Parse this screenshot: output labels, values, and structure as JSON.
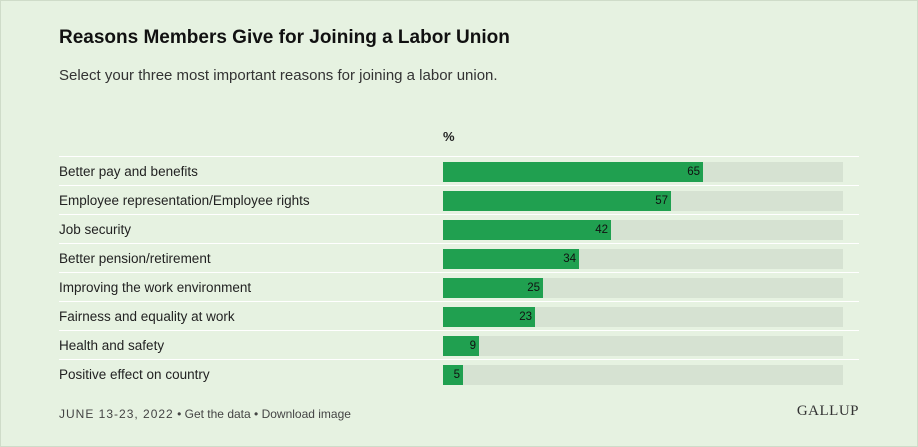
{
  "header": {
    "title": "Reasons Members Give for Joining a Labor Union",
    "subtitle": "Select your three most important reasons for joining a labor union."
  },
  "chart_data": {
    "type": "bar",
    "orientation": "horizontal",
    "unit_label": "%",
    "categories": [
      "Better pay and benefits",
      "Employee representation/Employee rights",
      "Job security",
      "Better pension/retirement",
      "Improving the work environment",
      "Fairness and equality at work",
      "Health and safety",
      "Positive effect on country"
    ],
    "values": [
      65,
      57,
      42,
      34,
      25,
      23,
      9,
      5
    ],
    "xlim": [
      0,
      100
    ],
    "bar_color": "#20a050",
    "track_color": "#d6e2d2"
  },
  "footer": {
    "date": "June 13-23, 2022",
    "separator": "•",
    "get_data": "Get the data",
    "download": "Download image"
  },
  "brand": {
    "logo": "GALLUP"
  }
}
